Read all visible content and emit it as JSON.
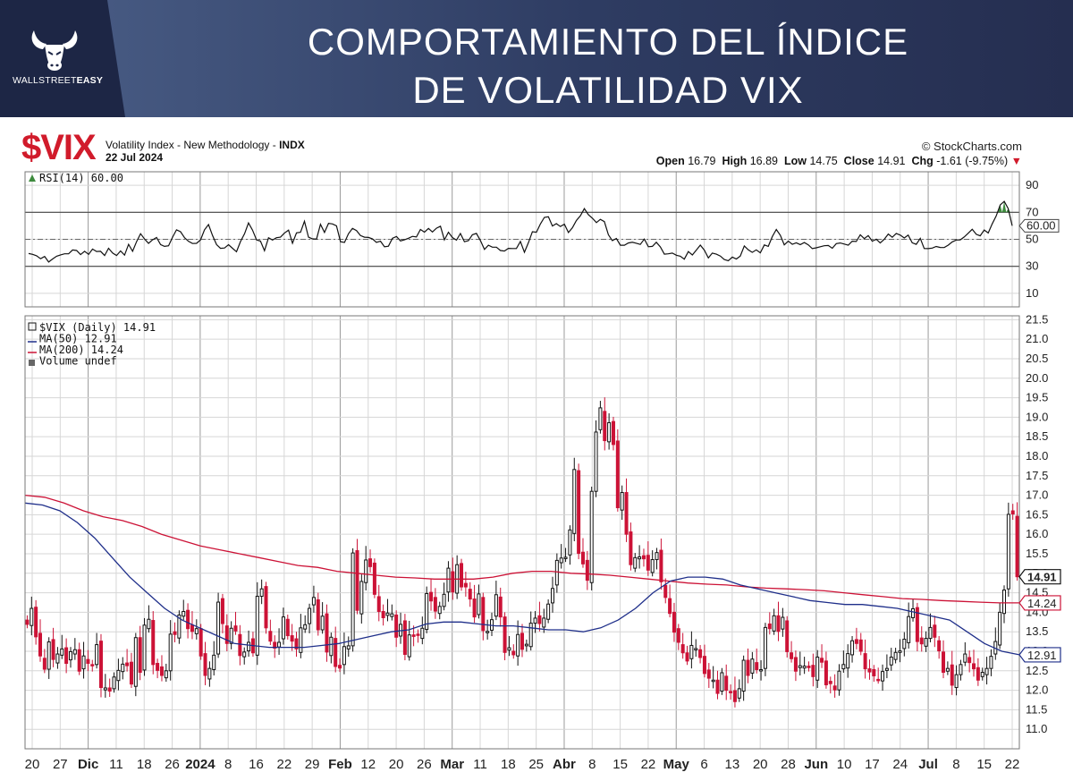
{
  "banner": {
    "title_line1": "COMPORTAMIENTO DEL ÍNDICE",
    "title_line2": "DE VOLATILIDAD VIX",
    "brand_regular": "WALLSTREET",
    "brand_bold": "EASY"
  },
  "header": {
    "symbol": "$VIX",
    "index_name": "Volatility Index - New Methodology - ",
    "exchange": "INDX",
    "date": "22 Jul 2024",
    "source": "© StockCharts.com",
    "open_label": "Open",
    "open": "16.79",
    "high_label": "High",
    "high": "16.89",
    "low_label": "Low",
    "low": "14.75",
    "close_label": "Close",
    "close": "14.91",
    "chg_label": "Chg",
    "chg": "-1.61 (-9.75%)",
    "chg_marker": "▼"
  },
  "colors": {
    "up": "#111111",
    "down": "#cc1236",
    "ma50": "#1f2f8a",
    "ma200": "#cc1236",
    "grid": "#d6d6d6",
    "rsi_fill": "#3d8a3d"
  },
  "chart_data": [
    {
      "type": "line",
      "title": "RSI(14) 60.00",
      "legend": "RSI(14) 60.00",
      "ylim": [
        0,
        100
      ],
      "y_ticks": [
        "90",
        "70",
        "50",
        "30",
        "10"
      ],
      "reference_lines": [
        70,
        50,
        30
      ],
      "last_value_label": "60.00",
      "values": [
        39.5,
        38.9,
        37.8,
        35.6,
        37.3,
        33.2,
        35.4,
        37.5,
        38.5,
        39.3,
        39.3,
        42.1,
        41.7,
        38.7,
        41.1,
        38.9,
        42.8,
        41.0,
        41.1,
        38.0,
        43.4,
        39.9,
        38.0,
        41.4,
        38.3,
        46.3,
        41.1,
        48.2,
        54.2,
        50.2,
        47.0,
        49.6,
        51.3,
        46.1,
        44.8,
        45.2,
        51.6,
        57.0,
        55.6,
        51.2,
        48.5,
        46.9,
        47.0,
        49.6,
        57.0,
        60.9,
        52.8,
        46.1,
        43.3,
        43.6,
        46.0,
        43.4,
        40.8,
        48.4,
        54.1,
        62.1,
        56.8,
        49.6,
        48.7,
        41.6,
        51.1,
        49.5,
        51.2,
        51.6,
        54.7,
        56.8,
        47.1,
        54.8,
        55.2,
        63.4,
        51.6,
        50.3,
        50.2,
        61.1,
        55.1,
        61.8,
        61.4,
        60.0,
        48.2,
        47.7,
        54.1,
        58.1,
        56.5,
        52.8,
        51.6,
        51.4,
        50.3,
        47.7,
        48.6,
        44.5,
        44.9,
        50.8,
        52.1,
        48.8,
        49.7,
        50.8,
        52.2,
        51.7,
        57.3,
        55.3,
        58.1,
        55.4,
        58.2,
        59.7,
        49.6,
        55.2,
        51.3,
        49.4,
        54.3,
        48.2,
        49.0,
        53.4,
        54.4,
        49.1,
        42.5,
        45.6,
        44.2,
        44.2,
        41.7,
        41.3,
        43.3,
        43.2,
        43.2,
        48.4,
        40.4,
        47.4,
        55.6,
        55.2,
        61.4,
        66.2,
        66.7,
        59.9,
        61.6,
        59.5,
        61.2,
        55.0,
        58.5,
        63.9,
        67.4,
        72.7,
        68.2,
        65.6,
        62.4,
        64.8,
        63.1,
        53.4,
        49.0,
        50.6,
        45.6,
        45.6,
        47.3,
        47.8,
        47.1,
        46.2,
        50.2,
        44.5,
        44.8,
        47.8,
        44.4,
        39.0,
        39.3,
        39.8,
        38.2,
        37.5,
        35.3,
        40.9,
        38.4,
        42.0,
        45.7,
        42.0,
        36.2,
        39.8,
        39.0,
        37.6,
        35.0,
        34.1,
        36.8,
        35.4,
        37.6,
        45.1,
        42.2,
        40.3,
        42.2,
        40.0,
        45.8,
        44.8,
        52.0,
        57.3,
        53.0,
        45.9,
        48.7,
        46.3,
        47.4,
        46.1,
        47.6,
        45.9,
        43.1,
        43.7,
        44.5,
        45.2,
        45.4,
        43.4,
        46.8,
        47.3,
        46.5,
        45.6,
        48.6,
        48.4,
        53.4,
        50.5,
        52.8,
        48.6,
        50.1,
        47.3,
        50.0,
        53.9,
        51.5,
        54.3,
        53.1,
        51.0,
        53.1,
        47.4,
        46.3,
        50.7,
        43.2,
        43.1,
        43.5,
        44.7,
        44.0,
        43.9,
        45.7,
        48.1,
        49.5,
        49.6,
        51.7,
        54.5,
        57.4,
        53.7,
        52.6,
        56.9,
        54.7,
        61.4,
        67.3,
        75.4,
        78.1,
        72.8,
        60.0
      ]
    },
    {
      "type": "candlestick",
      "title": "$VIX (Daily) 14.91",
      "legend": [
        "$VIX (Daily) 14.91",
        "MA(50) 12.91",
        "MA(200) 14.24",
        "Volume undef"
      ],
      "ylim": [
        10.5,
        21.6
      ],
      "y_ticks": [
        "21.5",
        "21.0",
        "20.5",
        "20.0",
        "19.5",
        "19.0",
        "18.5",
        "18.0",
        "17.5",
        "17.0",
        "16.5",
        "16.0",
        "15.5",
        "15.0",
        "14.5",
        "14.0",
        "13.5",
        "13.0",
        "12.5",
        "12.0",
        "11.5",
        "11.0"
      ],
      "last_value_labels": {
        "close": "14.91",
        "ma200": "14.24",
        "ma50": "12.91"
      },
      "x_tick_labels": [
        "20",
        "27",
        "Dic",
        "11",
        "18",
        "26",
        "2024",
        "8",
        "16",
        "22",
        "29",
        "Feb",
        "12",
        "20",
        "26",
        "Mar",
        "11",
        "18",
        "25",
        "Abr",
        "8",
        "15",
        "22",
        "May",
        "6",
        "13",
        "20",
        "28",
        "Jun",
        "10",
        "17",
        "24",
        "Jul",
        "8",
        "15",
        "22"
      ],
      "series": [
        {
          "name": "$VIX (Daily)",
          "close": [
            13.69,
            14.1,
            13.37,
            12.88,
            12.54,
            13.24,
            12.79,
            12.93,
            13.06,
            12.69,
            12.99,
            13.04,
            12.49,
            12.88,
            12.69,
            12.63,
            13.17,
            12.07,
            12.06,
            11.98,
            12.34,
            12.51,
            12.67,
            12.63,
            12.16,
            13.35,
            12.46,
            13.67,
            13.82,
            12.66,
            12.51,
            12.38,
            12.5,
            13.44,
            13.43,
            13.93,
            14.02,
            13.58,
            13.51,
            13.58,
            12.88,
            12.38,
            12.56,
            12.9,
            14.26,
            13.71,
            13.2,
            13.59,
            13.52,
            12.89,
            12.98,
            13.23,
            12.96,
            14.41,
            14.6,
            13.6,
            13.26,
            13.08,
            13.23,
            13.88,
            13.4,
            13.26,
            13.06,
            13.6,
            13.68,
            14.1,
            14.38,
            13.55,
            13.9,
            12.98,
            13.36,
            12.61,
            12.57,
            13.12,
            13.14,
            15.52,
            14.05,
            14.79,
            15.34,
            15.17,
            14.46,
            14.02,
            13.86,
            13.98,
            13.96,
            13.36,
            13.69,
            12.92,
            13.42,
            13.38,
            13.42,
            13.59,
            14.48,
            14.29,
            14.03,
            14.15,
            14.46,
            15.13,
            14.52,
            15.22,
            14.65,
            14.65,
            14.34,
            13.88,
            14.47,
            13.53,
            13.51,
            13.81,
            14.45,
            13.88,
            12.97,
            13.09,
            12.91,
            13.43,
            13.05,
            13.18,
            13.72,
            13.85,
            13.71,
            13.85,
            14.21,
            14.61,
            15.33,
            15.39,
            15.41,
            16.11,
            17.66,
            15.51,
            15.24,
            14.82,
            17.1,
            18.62,
            19.24,
            18.4,
            18.86,
            18.3,
            16.68,
            17.07,
            16.0,
            15.22,
            15.4,
            15.42,
            15.37,
            15.08,
            15.35,
            15.53,
            14.78,
            14.38,
            13.97,
            13.49,
            13.23,
            12.96,
            12.75,
            13.15,
            13.07,
            12.84,
            12.43,
            12.31,
            12.26,
            11.92,
            12.45,
            12.0,
            11.96,
            11.71,
            12.04,
            12.77,
            12.38,
            12.8,
            12.53,
            12.53,
            13.61,
            13.58,
            13.91,
            13.51,
            13.87,
            12.99,
            12.81,
            12.49,
            12.63,
            12.62,
            12.58,
            12.35,
            12.85,
            12.72,
            12.14,
            12.17,
            12.01,
            12.49,
            12.66,
            12.94,
            13.27,
            13.2,
            13.0,
            12.55,
            12.47,
            12.37,
            12.27,
            12.48,
            12.56,
            12.85,
            12.97,
            13.01,
            13.31,
            13.89,
            14.09,
            13.25,
            13.19,
            13.33,
            13.61,
            13.36,
            13.01,
            12.46,
            12.56,
            12.13,
            12.4,
            12.66,
            12.93,
            12.71,
            12.55,
            12.26,
            12.46,
            12.56,
            12.87,
            13.25,
            14.0,
            14.57,
            16.51,
            16.52,
            14.91
          ]
        },
        {
          "name": "MA(50)",
          "values": [
            16.8,
            16.75,
            16.6,
            16.3,
            15.9,
            15.4,
            14.9,
            14.5,
            14.1,
            13.8,
            13.6,
            13.4,
            13.2,
            13.15,
            13.1,
            13.1,
            13.1,
            13.15,
            13.2,
            13.3,
            13.4,
            13.5,
            13.55,
            13.7,
            13.75,
            13.75,
            13.7,
            13.65,
            13.65,
            13.6,
            13.55,
            13.55,
            13.5,
            13.6,
            13.8,
            14.1,
            14.5,
            14.8,
            14.9,
            14.9,
            14.85,
            14.7,
            14.6,
            14.5,
            14.4,
            14.3,
            14.25,
            14.2,
            14.2,
            14.15,
            14.1,
            14.0,
            13.9,
            13.8,
            13.5,
            13.2,
            13.0,
            12.91
          ]
        },
        {
          "name": "MA(200)",
          "values": [
            17.0,
            16.95,
            16.8,
            16.6,
            16.45,
            16.35,
            16.2,
            16.0,
            15.85,
            15.7,
            15.6,
            15.5,
            15.4,
            15.3,
            15.2,
            15.15,
            15.05,
            15.0,
            14.95,
            14.9,
            14.88,
            14.85,
            14.85,
            14.85,
            14.9,
            15.0,
            15.05,
            15.05,
            15.0,
            14.98,
            14.95,
            14.9,
            14.85,
            14.8,
            14.75,
            14.72,
            14.7,
            14.65,
            14.62,
            14.6,
            14.58,
            14.55,
            14.5,
            14.45,
            14.4,
            14.35,
            14.33,
            14.3,
            14.28,
            14.26,
            14.24,
            14.24
          ]
        }
      ]
    }
  ]
}
